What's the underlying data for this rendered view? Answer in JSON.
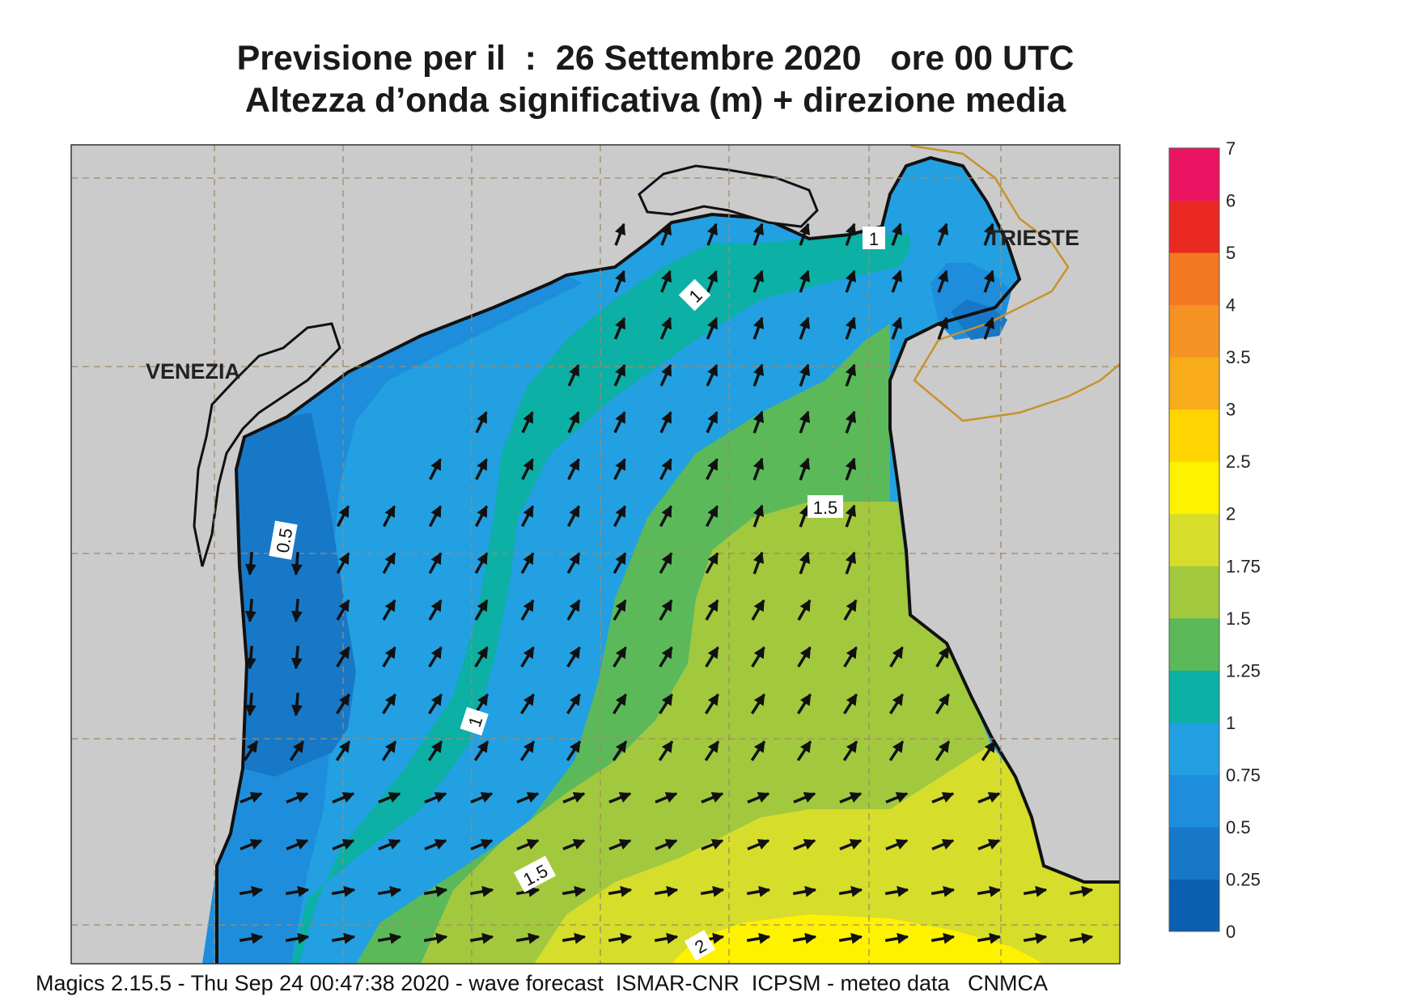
{
  "header": {
    "title_line1": "Previsione per il  :  26 Settembre 2020   ore 00 UTC",
    "title_line2": "Altezza d’onda significativa (m) + direzione media"
  },
  "map": {
    "cities": [
      {
        "name": "VENEZIA"
      },
      {
        "name": "TRIESTE"
      }
    ],
    "contour_labels": [
      "0.5",
      "1",
      "1",
      "1",
      "1.5",
      "1.5",
      "2"
    ],
    "colors": {
      "land": "#cbcbcb",
      "coast": "#111111",
      "grid": "#a08a6a",
      "border": "#c8922a"
    }
  },
  "colorbar": {
    "labels": [
      "0",
      "0.25",
      "0.5",
      "0.75",
      "1",
      "1.25",
      "1.5",
      "1.75",
      "2",
      "2.5",
      "3",
      "3.5",
      "4",
      "5",
      "6",
      "7"
    ],
    "colors": [
      "#0a5fb0",
      "#1878c8",
      "#1e8edc",
      "#22a0e2",
      "#0cb0a4",
      "#5bb95a",
      "#a2c83e",
      "#d6dd2a",
      "#fff200",
      "#ffd400",
      "#f8ac1a",
      "#f59224",
      "#f37a22",
      "#ea2a22",
      "#ea1463"
    ]
  },
  "footer": {
    "text": "Magics 2.15.5 - Thu Sep 24 00:47:38 2020 - wave forecast  ISMAR-CNR  ICPSM - meteo data   CNMCA"
  }
}
